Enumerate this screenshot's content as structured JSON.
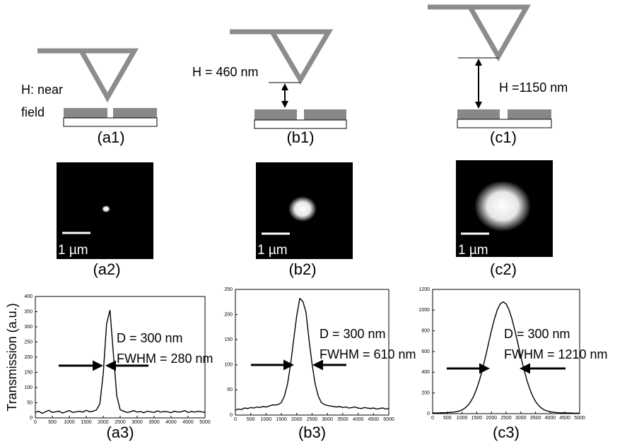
{
  "diagrams": [
    {
      "label": "(a1)",
      "height_label": [
        "H: near",
        "field"
      ]
    },
    {
      "label": "(b1)",
      "height_label": [
        "H = 460 nm"
      ]
    },
    {
      "label": "(c1)",
      "height_label": [
        "H =1150 nm"
      ]
    }
  ],
  "images": [
    {
      "label": "(a2)",
      "scale_label": "1 µm"
    },
    {
      "label": "(b2)",
      "scale_label": "1 µm"
    },
    {
      "label": "(c2)",
      "scale_label": "1 µm"
    }
  ],
  "chart_data": [
    {
      "type": "line",
      "label": "(a3)",
      "ylabel": "Transmission (a.u.)",
      "annotations": [
        "D = 300 nm",
        "FWHM = 280 nm"
      ],
      "x": [
        0,
        100,
        200,
        300,
        400,
        500,
        600,
        700,
        800,
        900,
        1000,
        1100,
        1200,
        1300,
        1400,
        1500,
        1600,
        1700,
        1800,
        1900,
        2000,
        2100,
        2200,
        2300,
        2400,
        2500,
        2600,
        2700,
        2800,
        2900,
        3000,
        3100,
        3200,
        3300,
        3400,
        3500,
        3600,
        3700,
        3800,
        3900,
        4000,
        4100,
        4200,
        4300,
        4400,
        4500,
        4600,
        4700,
        4800,
        4900,
        5000
      ],
      "series": [
        {
          "color": "#000000",
          "values": [
            18,
            22,
            15,
            20,
            25,
            18,
            20,
            22,
            16,
            20,
            24,
            18,
            20,
            22,
            19,
            25,
            20,
            22,
            26,
            46,
            144,
            310,
            355,
            210,
            73,
            27,
            22,
            18,
            20,
            24,
            19,
            21,
            17,
            22,
            20,
            18,
            23,
            19,
            21,
            20,
            17,
            22,
            19,
            20,
            24,
            18,
            21,
            19,
            22,
            20,
            18
          ]
        }
      ],
      "xlim": [
        0,
        5000
      ],
      "ylim": [
        0,
        400
      ],
      "xticks": [
        0,
        500,
        1000,
        1500,
        2000,
        2500,
        3000,
        3500,
        4000,
        4500,
        5000
      ],
      "yticks": [
        0,
        50,
        100,
        150,
        200,
        250,
        300,
        350,
        400
      ]
    },
    {
      "type": "line",
      "label": "(b3)",
      "annotations": [
        "D = 300 nm",
        "FWHM = 610 nm"
      ],
      "x": [
        0,
        100,
        200,
        300,
        400,
        500,
        600,
        700,
        800,
        900,
        1000,
        1100,
        1200,
        1300,
        1400,
        1500,
        1600,
        1700,
        1800,
        1900,
        2000,
        2100,
        2200,
        2300,
        2400,
        2500,
        2600,
        2700,
        2800,
        2900,
        3000,
        3100,
        3200,
        3300,
        3400,
        3500,
        3600,
        3700,
        3800,
        3900,
        4000,
        4100,
        4200,
        4300,
        4400,
        4500,
        4600,
        4700,
        4800,
        4900,
        5000
      ],
      "series": [
        {
          "color": "#000000",
          "values": [
            10,
            12,
            11,
            14,
            13,
            15,
            14,
            16,
            15,
            17,
            16,
            18,
            20,
            20,
            21,
            25,
            38,
            62,
            101,
            150,
            198,
            232,
            226,
            205,
            150,
            101,
            62,
            38,
            25,
            21,
            19,
            18,
            17,
            16,
            17,
            15,
            16,
            14,
            15,
            16,
            14,
            13,
            15,
            14,
            13,
            14,
            12,
            13,
            14,
            12,
            13
          ]
        }
      ],
      "xlim": [
        0,
        5000
      ],
      "ylim": [
        0,
        250
      ],
      "xticks": [
        0,
        500,
        1000,
        1500,
        2000,
        2500,
        3000,
        3500,
        4000,
        4500,
        5000
      ],
      "yticks": [
        0,
        50,
        100,
        150,
        200,
        250
      ]
    },
    {
      "type": "line",
      "label": "(c3)",
      "annotations": [
        "D = 300 nm",
        "FWHM = 1210 nm"
      ],
      "x": [
        0,
        100,
        200,
        300,
        400,
        500,
        600,
        700,
        800,
        900,
        1000,
        1100,
        1200,
        1300,
        1400,
        1500,
        1600,
        1700,
        1800,
        1900,
        2000,
        2100,
        2200,
        2300,
        2400,
        2500,
        2600,
        2700,
        2800,
        2900,
        3000,
        3100,
        3200,
        3300,
        3400,
        3500,
        3600,
        3700,
        3800,
        3900,
        4000,
        4100,
        4200,
        4300,
        4400,
        4500,
        4600,
        4700,
        4800,
        4900,
        5000
      ],
      "series": [
        {
          "color": "#000000",
          "values": [
            8,
            6,
            7,
            8,
            9,
            10,
            12,
            14,
            18,
            25,
            36,
            54,
            80,
            118,
            171,
            241,
            329,
            434,
            551,
            677,
            801,
            912,
            1002,
            1060,
            1080,
            1060,
            1002,
            912,
            801,
            677,
            551,
            434,
            329,
            241,
            171,
            118,
            80,
            54,
            36,
            25,
            18,
            14,
            11,
            9,
            8,
            7,
            6,
            6,
            5,
            5,
            5
          ]
        }
      ],
      "xlim": [
        0,
        5000
      ],
      "ylim": [
        0,
        1200
      ],
      "xticks": [
        0,
        500,
        1000,
        1500,
        2000,
        2500,
        3000,
        3500,
        4000,
        4500,
        5000
      ],
      "yticks": [
        0,
        200,
        400,
        600,
        800,
        1000,
        1200
      ]
    }
  ]
}
